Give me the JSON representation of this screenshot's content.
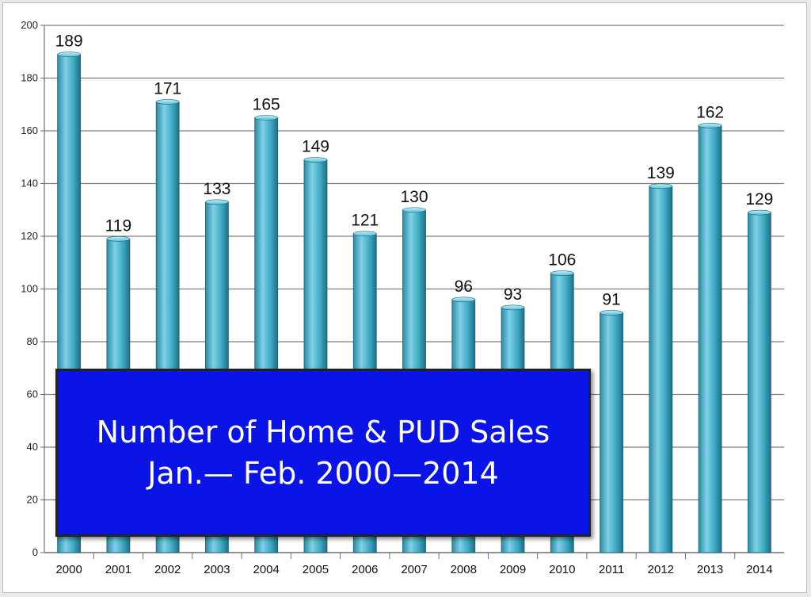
{
  "chart_data": {
    "type": "bar",
    "title": "Number of Home & PUD Sales",
    "subtitle": "Jan.— Feb. 2000—2014",
    "categories": [
      "2000",
      "2001",
      "2002",
      "2003",
      "2004",
      "2005",
      "2006",
      "2007",
      "2008",
      "2009",
      "2010",
      "2011",
      "2012",
      "2013",
      "2014"
    ],
    "values": [
      189,
      119,
      171,
      133,
      165,
      149,
      121,
      130,
      96,
      93,
      106,
      91,
      139,
      162,
      129
    ],
    "ylim": [
      0,
      200
    ],
    "yticks": [
      0,
      20,
      40,
      60,
      80,
      100,
      120,
      140,
      160,
      180,
      200
    ],
    "grid": true,
    "legend": "none",
    "colors": {
      "bar_light": "#7fd1e6",
      "bar_mid": "#3ea9c4",
      "bar_dark": "#1f6f84",
      "grid": "#8b7a74",
      "title_box": "#0a14e6"
    }
  }
}
